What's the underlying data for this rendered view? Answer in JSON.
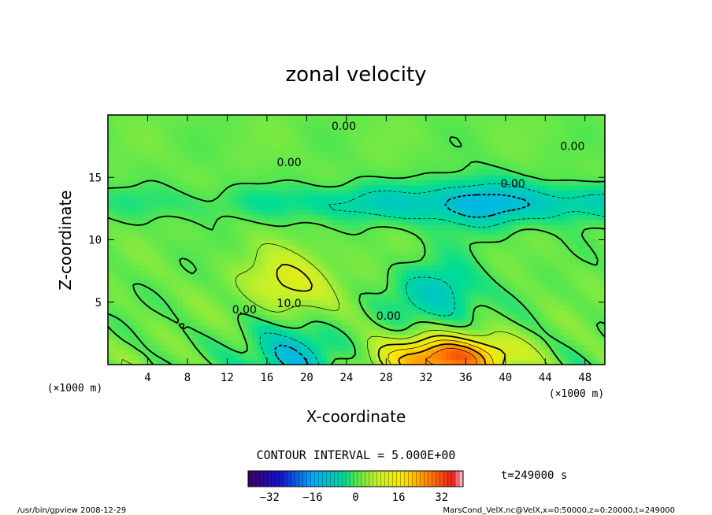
{
  "chart_data": {
    "type": "heatmap",
    "title": "zonal velocity",
    "xlabel": "X-coordinate",
    "ylabel": "Z-coordinate",
    "x_unit": "(×1000 m)",
    "y_unit": "(×1000 m)",
    "xlim": [
      0,
      50
    ],
    "ylim": [
      0,
      20
    ],
    "x_ticks": [
      4,
      8,
      12,
      16,
      20,
      24,
      28,
      32,
      36,
      40,
      44,
      48
    ],
    "y_ticks": [
      5,
      10,
      15
    ],
    "contour_interval_text": "CONTOUR INTERVAL = 5.000E+00",
    "time_text": "t=249000 s",
    "colorbar": {
      "min": -40,
      "max": 40,
      "ticks": [
        -32,
        -16,
        0,
        16,
        32
      ]
    },
    "contour_labels": [
      {
        "text": "0.00",
        "x": 22.5,
        "y": 18.8
      },
      {
        "text": "0.00",
        "x": 17.0,
        "y": 15.9
      },
      {
        "text": "0.00",
        "x": 45.5,
        "y": 17.2
      },
      {
        "text": "0.00",
        "x": 39.5,
        "y": 14.2
      },
      {
        "text": "0.00",
        "x": 12.5,
        "y": 4.1
      },
      {
        "text": "10.0",
        "x": 17.0,
        "y": 4.6
      },
      {
        "text": "0.00",
        "x": 27.0,
        "y": 3.6
      }
    ],
    "features": [
      {
        "kind": "max",
        "x": 34,
        "y": 0.4,
        "value": 30
      },
      {
        "kind": "max",
        "x": 18,
        "y": 6.5,
        "value": 10
      },
      {
        "kind": "min",
        "x": 33,
        "y": 5.5,
        "value": -10
      },
      {
        "kind": "min",
        "x": 37,
        "y": 12.8,
        "value": -6
      },
      {
        "kind": "min",
        "x": 18,
        "y": 0.5,
        "value": -12
      }
    ]
  },
  "footer": {
    "left": "/usr/bin/gpview  2008-12-29",
    "right": "MarsCond_VelX.nc@VelX,x=0:50000,z=0:20000,t=249000"
  }
}
